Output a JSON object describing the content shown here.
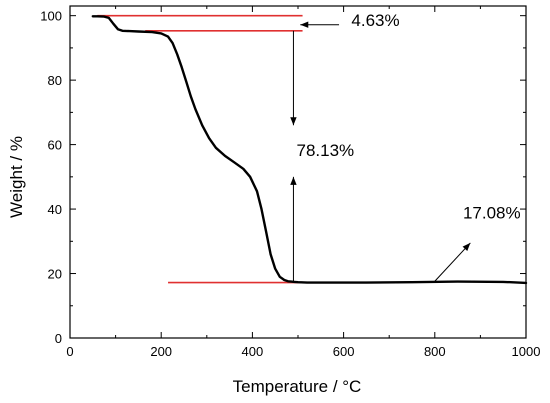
{
  "chart_data": {
    "type": "line",
    "xlabel": "Temperature / °C",
    "ylabel": "Weight / %",
    "xlim": [
      0,
      1000
    ],
    "ylim": [
      0,
      103
    ],
    "xticks": [
      0,
      200,
      400,
      600,
      800,
      1000
    ],
    "yticks": [
      0,
      20,
      40,
      60,
      80,
      100
    ],
    "grid": false,
    "series": [
      {
        "color": "#000000",
        "x": [
          50,
          60,
          75,
          85,
          95,
          105,
          115,
          130,
          150,
          180,
          200,
          215,
          225,
          235,
          245,
          255,
          265,
          275,
          290,
          305,
          320,
          340,
          360,
          380,
          395,
          410,
          420,
          430,
          440,
          450,
          460,
          470,
          478,
          485,
          492,
          500,
          520,
          560,
          650,
          750,
          850,
          950,
          1000
        ],
        "y": [
          99.8,
          99.8,
          99.7,
          99.3,
          97.5,
          95.8,
          95.3,
          95.2,
          95.1,
          94.9,
          94.5,
          93.5,
          91.5,
          88.0,
          84.0,
          79.5,
          75.0,
          71.0,
          66.0,
          62.0,
          59.0,
          56.5,
          54.5,
          52.5,
          50.0,
          45.5,
          40.0,
          33.0,
          26.0,
          21.5,
          19.0,
          18.0,
          17.6,
          17.5,
          17.4,
          17.3,
          17.2,
          17.2,
          17.2,
          17.3,
          17.5,
          17.4,
          17.1
        ]
      }
    ],
    "annotations": {
      "color": "#e03030",
      "levels": [
        {
          "x1": 60,
          "x2": 510,
          "y": 100.0
        },
        {
          "x1": 165,
          "x2": 510,
          "y": 95.3
        },
        {
          "x1": 215,
          "x2": 560,
          "y": 17.2
        }
      ],
      "arrows": [
        {
          "x1": 590,
          "y1": 97.2,
          "x2": 505,
          "y2": 97.2
        },
        {
          "x1": 490,
          "y1": 95.3,
          "x2": 490,
          "y2": 66.0
        },
        {
          "x1": 490,
          "y1": 17.2,
          "x2": 490,
          "y2": 50.0
        },
        {
          "x1": 800,
          "y1": 17.6,
          "x2": 878,
          "y2": 29.5
        }
      ],
      "labels": [
        {
          "text": "4.63%",
          "x": 670,
          "y": 96.8
        },
        {
          "text": "78.13%",
          "x": 560,
          "y": 56.5
        },
        {
          "text": "17.08%",
          "x": 925,
          "y": 37.0
        }
      ]
    }
  }
}
